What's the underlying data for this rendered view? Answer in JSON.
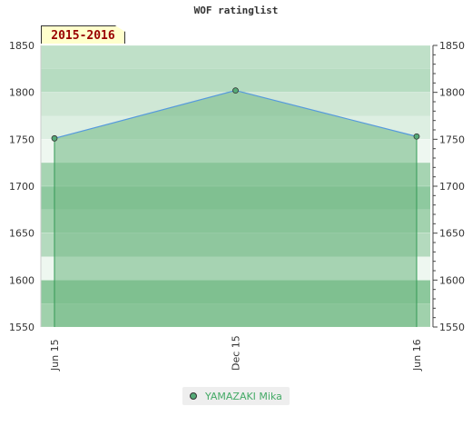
{
  "title": "WOF ratinglist",
  "period_label": "2015-2016",
  "chart_data": {
    "type": "area",
    "title": "WOF ratinglist",
    "x": [
      "Jun 15",
      "Dec 15",
      "Jun 16"
    ],
    "series": [
      {
        "name": "YAMAZAKI Mika",
        "values": [
          1751,
          1802,
          1753
        ]
      }
    ],
    "ylim": [
      1550,
      1850
    ],
    "yticks": [
      1550,
      1600,
      1650,
      1700,
      1750,
      1800,
      1850
    ],
    "y_axis_sides": "both",
    "grid": true,
    "legend_position": "bottom-center",
    "colors": {
      "line": "#5599dd",
      "fill": "#77bb88",
      "marker": "#55aa77",
      "legend_text": "#44aa66"
    }
  },
  "legend": {
    "label": "YAMAZAKI Mika"
  }
}
